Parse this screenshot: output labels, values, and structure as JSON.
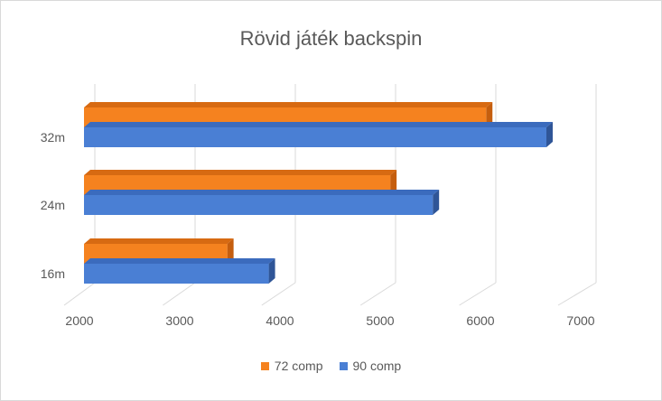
{
  "chart_data": {
    "type": "bar",
    "orientation": "horizontal",
    "style": "3d",
    "title": "Rövid játék backspin",
    "categories": [
      "16m",
      "24m",
      "32m"
    ],
    "series": [
      {
        "name": "72 comp",
        "values": [
          3450,
          5100,
          6070
        ],
        "color": "#f5821f",
        "top_color": "#d76a12",
        "side_color": "#c55e0e"
      },
      {
        "name": "90 comp",
        "values": [
          3870,
          5530,
          6680
        ],
        "color": "#4a7fd4",
        "top_color": "#3b6bbd",
        "side_color": "#2f5597"
      }
    ],
    "xlim": [
      2000,
      7000
    ],
    "xticks": [
      "2000",
      "3000",
      "4000",
      "5000",
      "6000",
      "7000"
    ],
    "grid": true,
    "legend_position": "bottom"
  }
}
